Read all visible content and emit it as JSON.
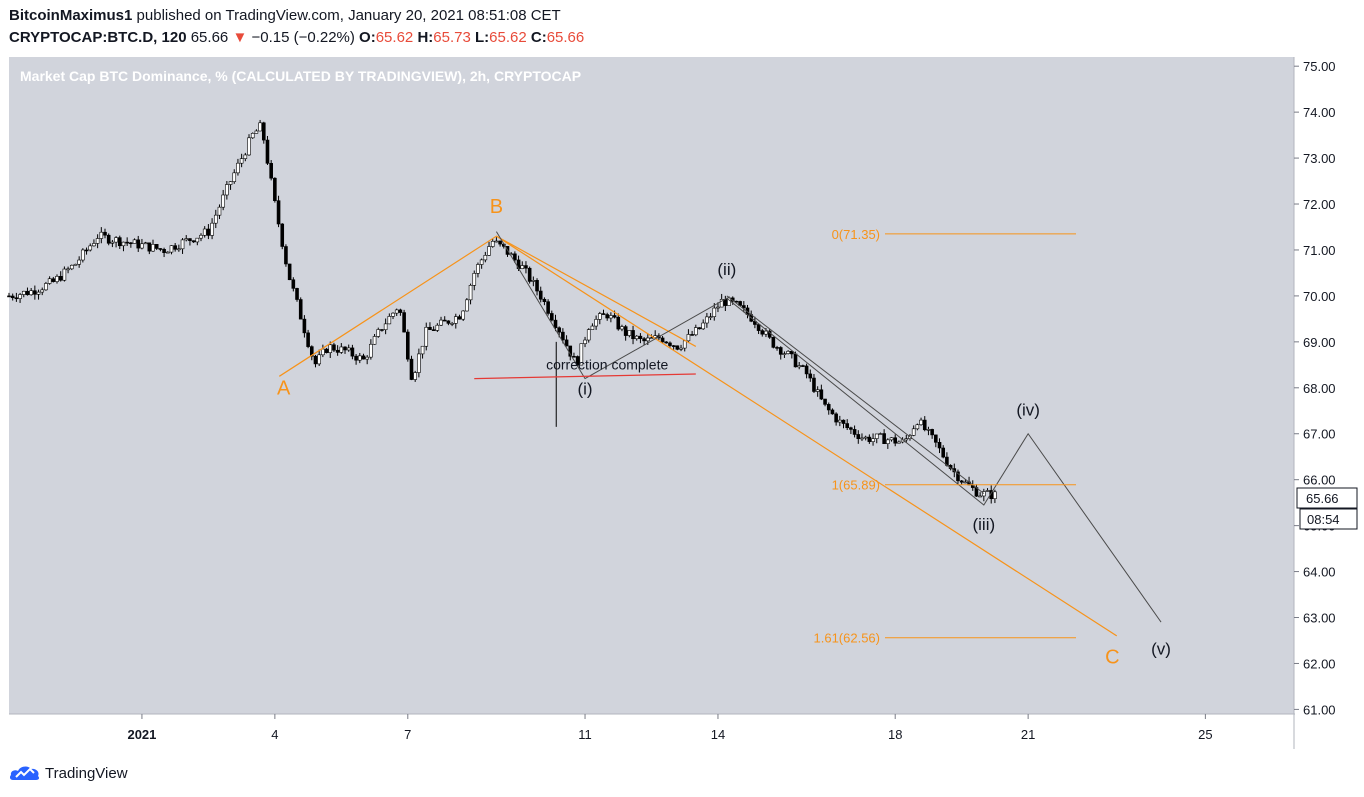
{
  "header": {
    "author": "BitcoinMaximus1",
    "published_text": "published on TradingView.com, January 20, 2021 08:51:08 CET",
    "symbol": "CRYPTOCAP:BTC.D, 120",
    "last": "65.66",
    "change": "−0.15 (−0.22%)",
    "o_label": "O:",
    "o_value": "65.62",
    "h_label": "H:",
    "h_value": "65.73",
    "l_label": "L:",
    "l_value": "65.62",
    "c_label": "C:",
    "c_value": "65.66"
  },
  "footer": {
    "brand": "TradingView"
  },
  "colors": {
    "plot_bg": "#d1d4dc",
    "orange": "#f7931a",
    "gray_line": "#4a4a4a",
    "red_line": "#e53935",
    "candle_up": "#ffffff",
    "candle_down": "#000000"
  },
  "chart_data": {
    "type": "candlestick",
    "title": "Market Cap BTC Dominance, % (CALCULATED BY TRADINGVIEW), 2h, CRYPTOCAP",
    "ylim": [
      60.9,
      75.2
    ],
    "xlim": [
      -2.0,
      27.0
    ],
    "y_ticks": [
      "75.00",
      "74.00",
      "73.00",
      "72.00",
      "71.00",
      "70.00",
      "69.00",
      "68.00",
      "67.00",
      "66.00",
      "65.00",
      "64.00",
      "63.00",
      "62.00",
      "61.00"
    ],
    "x_ticks": [
      {
        "label": "2021",
        "day": 1
      },
      {
        "label": "4",
        "day": 4
      },
      {
        "label": "7",
        "day": 7
      },
      {
        "label": "11",
        "day": 11
      },
      {
        "label": "14",
        "day": 14
      },
      {
        "label": "18",
        "day": 18
      },
      {
        "label": "21",
        "day": 21
      },
      {
        "label": "25",
        "day": 25
      }
    ],
    "price_anchors": [
      [
        -2.0,
        70.0
      ],
      [
        -1.5,
        70.1
      ],
      [
        -1.0,
        70.3
      ],
      [
        -0.5,
        70.7
      ],
      [
        0.0,
        71.3
      ],
      [
        0.5,
        71.2
      ],
      [
        1.0,
        71.1
      ],
      [
        1.5,
        71.0
      ],
      [
        2.0,
        71.2
      ],
      [
        2.5,
        71.4
      ],
      [
        3.0,
        72.5
      ],
      [
        3.5,
        73.5
      ],
      [
        3.7,
        73.7
      ],
      [
        4.0,
        72.0
      ],
      [
        4.3,
        70.5
      ],
      [
        4.6,
        69.5
      ],
      [
        4.9,
        68.5
      ],
      [
        5.2,
        68.9
      ],
      [
        5.6,
        68.8
      ],
      [
        6.0,
        68.6
      ],
      [
        6.4,
        69.3
      ],
      [
        6.8,
        69.8
      ],
      [
        7.1,
        68.2
      ],
      [
        7.4,
        69.2
      ],
      [
        7.8,
        69.4
      ],
      [
        8.2,
        69.6
      ],
      [
        8.5,
        70.5
      ],
      [
        8.9,
        71.2
      ],
      [
        9.2,
        71.0
      ],
      [
        9.6,
        70.6
      ],
      [
        10.0,
        70.0
      ],
      [
        10.4,
        69.3
      ],
      [
        10.8,
        68.5
      ],
      [
        11.1,
        69.4
      ],
      [
        11.5,
        69.6
      ],
      [
        11.9,
        69.2
      ],
      [
        12.3,
        69.0
      ],
      [
        12.7,
        69.1
      ],
      [
        13.1,
        68.9
      ],
      [
        13.6,
        69.3
      ],
      [
        14.1,
        69.9
      ],
      [
        14.4,
        69.8
      ],
      [
        14.8,
        69.5
      ],
      [
        15.2,
        69.0
      ],
      [
        15.6,
        68.7
      ],
      [
        16.0,
        68.3
      ],
      [
        16.4,
        67.6
      ],
      [
        16.8,
        67.2
      ],
      [
        17.3,
        66.9
      ],
      [
        17.7,
        66.9
      ],
      [
        18.2,
        66.8
      ],
      [
        18.5,
        67.3
      ],
      [
        18.9,
        66.8
      ],
      [
        19.3,
        66.2
      ],
      [
        19.6,
        65.9
      ],
      [
        19.9,
        65.7
      ],
      [
        20.3,
        65.66
      ]
    ],
    "fib_levels": [
      {
        "label": "0(71.35)",
        "value": 71.35
      },
      {
        "label": "1(65.89)",
        "value": 65.89
      },
      {
        "label": "1.61(62.56)",
        "value": 62.56
      }
    ],
    "abc_wave": [
      [
        4.1,
        68.25
      ],
      [
        9.0,
        71.3
      ],
      [
        23.0,
        62.6
      ]
    ],
    "abc_upper_line": [
      [
        9.0,
        71.3
      ],
      [
        13.5,
        68.9
      ]
    ],
    "impulse_wave": [
      [
        9.0,
        71.4
      ],
      [
        11.0,
        68.2
      ],
      [
        14.2,
        69.95
      ],
      [
        20.0,
        65.45
      ],
      [
        21.0,
        67.0
      ],
      [
        24.0,
        62.9
      ]
    ],
    "channel_line": [
      [
        14.2,
        70.0
      ],
      [
        20.0,
        65.7
      ]
    ],
    "red_line": [
      [
        8.5,
        68.2
      ],
      [
        13.5,
        68.3
      ]
    ],
    "annotations": [
      {
        "text": "A",
        "day": 4.2,
        "price": 67.85,
        "color": "orange"
      },
      {
        "text": "B",
        "day": 9.0,
        "price": 71.8,
        "color": "orange"
      },
      {
        "text": "C",
        "day": 22.9,
        "price": 62.0,
        "color": "orange"
      },
      {
        "text": "(i)",
        "day": 11.0,
        "price": 67.85,
        "color": "dark"
      },
      {
        "text": "(ii)",
        "day": 14.2,
        "price": 70.45,
        "color": "dark"
      },
      {
        "text": "(iii)",
        "day": 20.0,
        "price": 64.9,
        "color": "dark"
      },
      {
        "text": "(iv)",
        "day": 21.0,
        "price": 67.4,
        "color": "dark"
      },
      {
        "text": "(v)",
        "day": 24.0,
        "price": 62.2,
        "color": "dark"
      },
      {
        "text": "correction complete",
        "day": 11.5,
        "price": 68.4,
        "color": "dark"
      }
    ],
    "last_price_label": "65.66",
    "countdown_label": "08:54"
  }
}
